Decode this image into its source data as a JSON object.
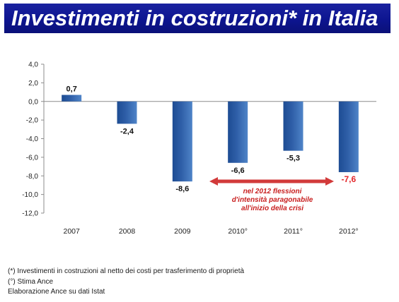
{
  "page": {
    "title": "Investimenti in costruzioni* in Italia"
  },
  "chart_data": {
    "type": "bar",
    "categories": [
      "2007",
      "2008",
      "2009",
      "2010°",
      "2011°",
      "2012°"
    ],
    "values": [
      0.7,
      -2.4,
      -8.6,
      -6.6,
      -5.3,
      -7.6
    ],
    "value_labels": [
      "0,7",
      "-2,4",
      "-8,6",
      "-6,6",
      "-5,3",
      "-7,6"
    ],
    "ylim": [
      -12.0,
      4.0
    ],
    "yticks": [
      "4,0",
      "2,0",
      "0,0",
      "-2,0",
      "-4,0",
      "-6,0",
      "-8,0",
      "-10,0",
      "-12,0"
    ],
    "ytick_values": [
      4,
      2,
      0,
      -2,
      -4,
      -6,
      -8,
      -10,
      -12
    ],
    "bar_color": "#2f5fa8",
    "highlight_label_index": 5,
    "highlight_color": "#e3262a",
    "grid": false,
    "annotation": {
      "lines": [
        "nel 2012 flessioni",
        "d'intensità  paragonabile",
        "all'inizio  della crisi"
      ],
      "color": "#c81e1e",
      "arrow_color": "#d23a3a"
    }
  },
  "footnotes": [
    "(*) Investimenti in costruzioni al netto dei costi per trasferimento di proprietà",
    "(°) Stima Ance",
    "Elaborazione Ance su dati Istat"
  ]
}
